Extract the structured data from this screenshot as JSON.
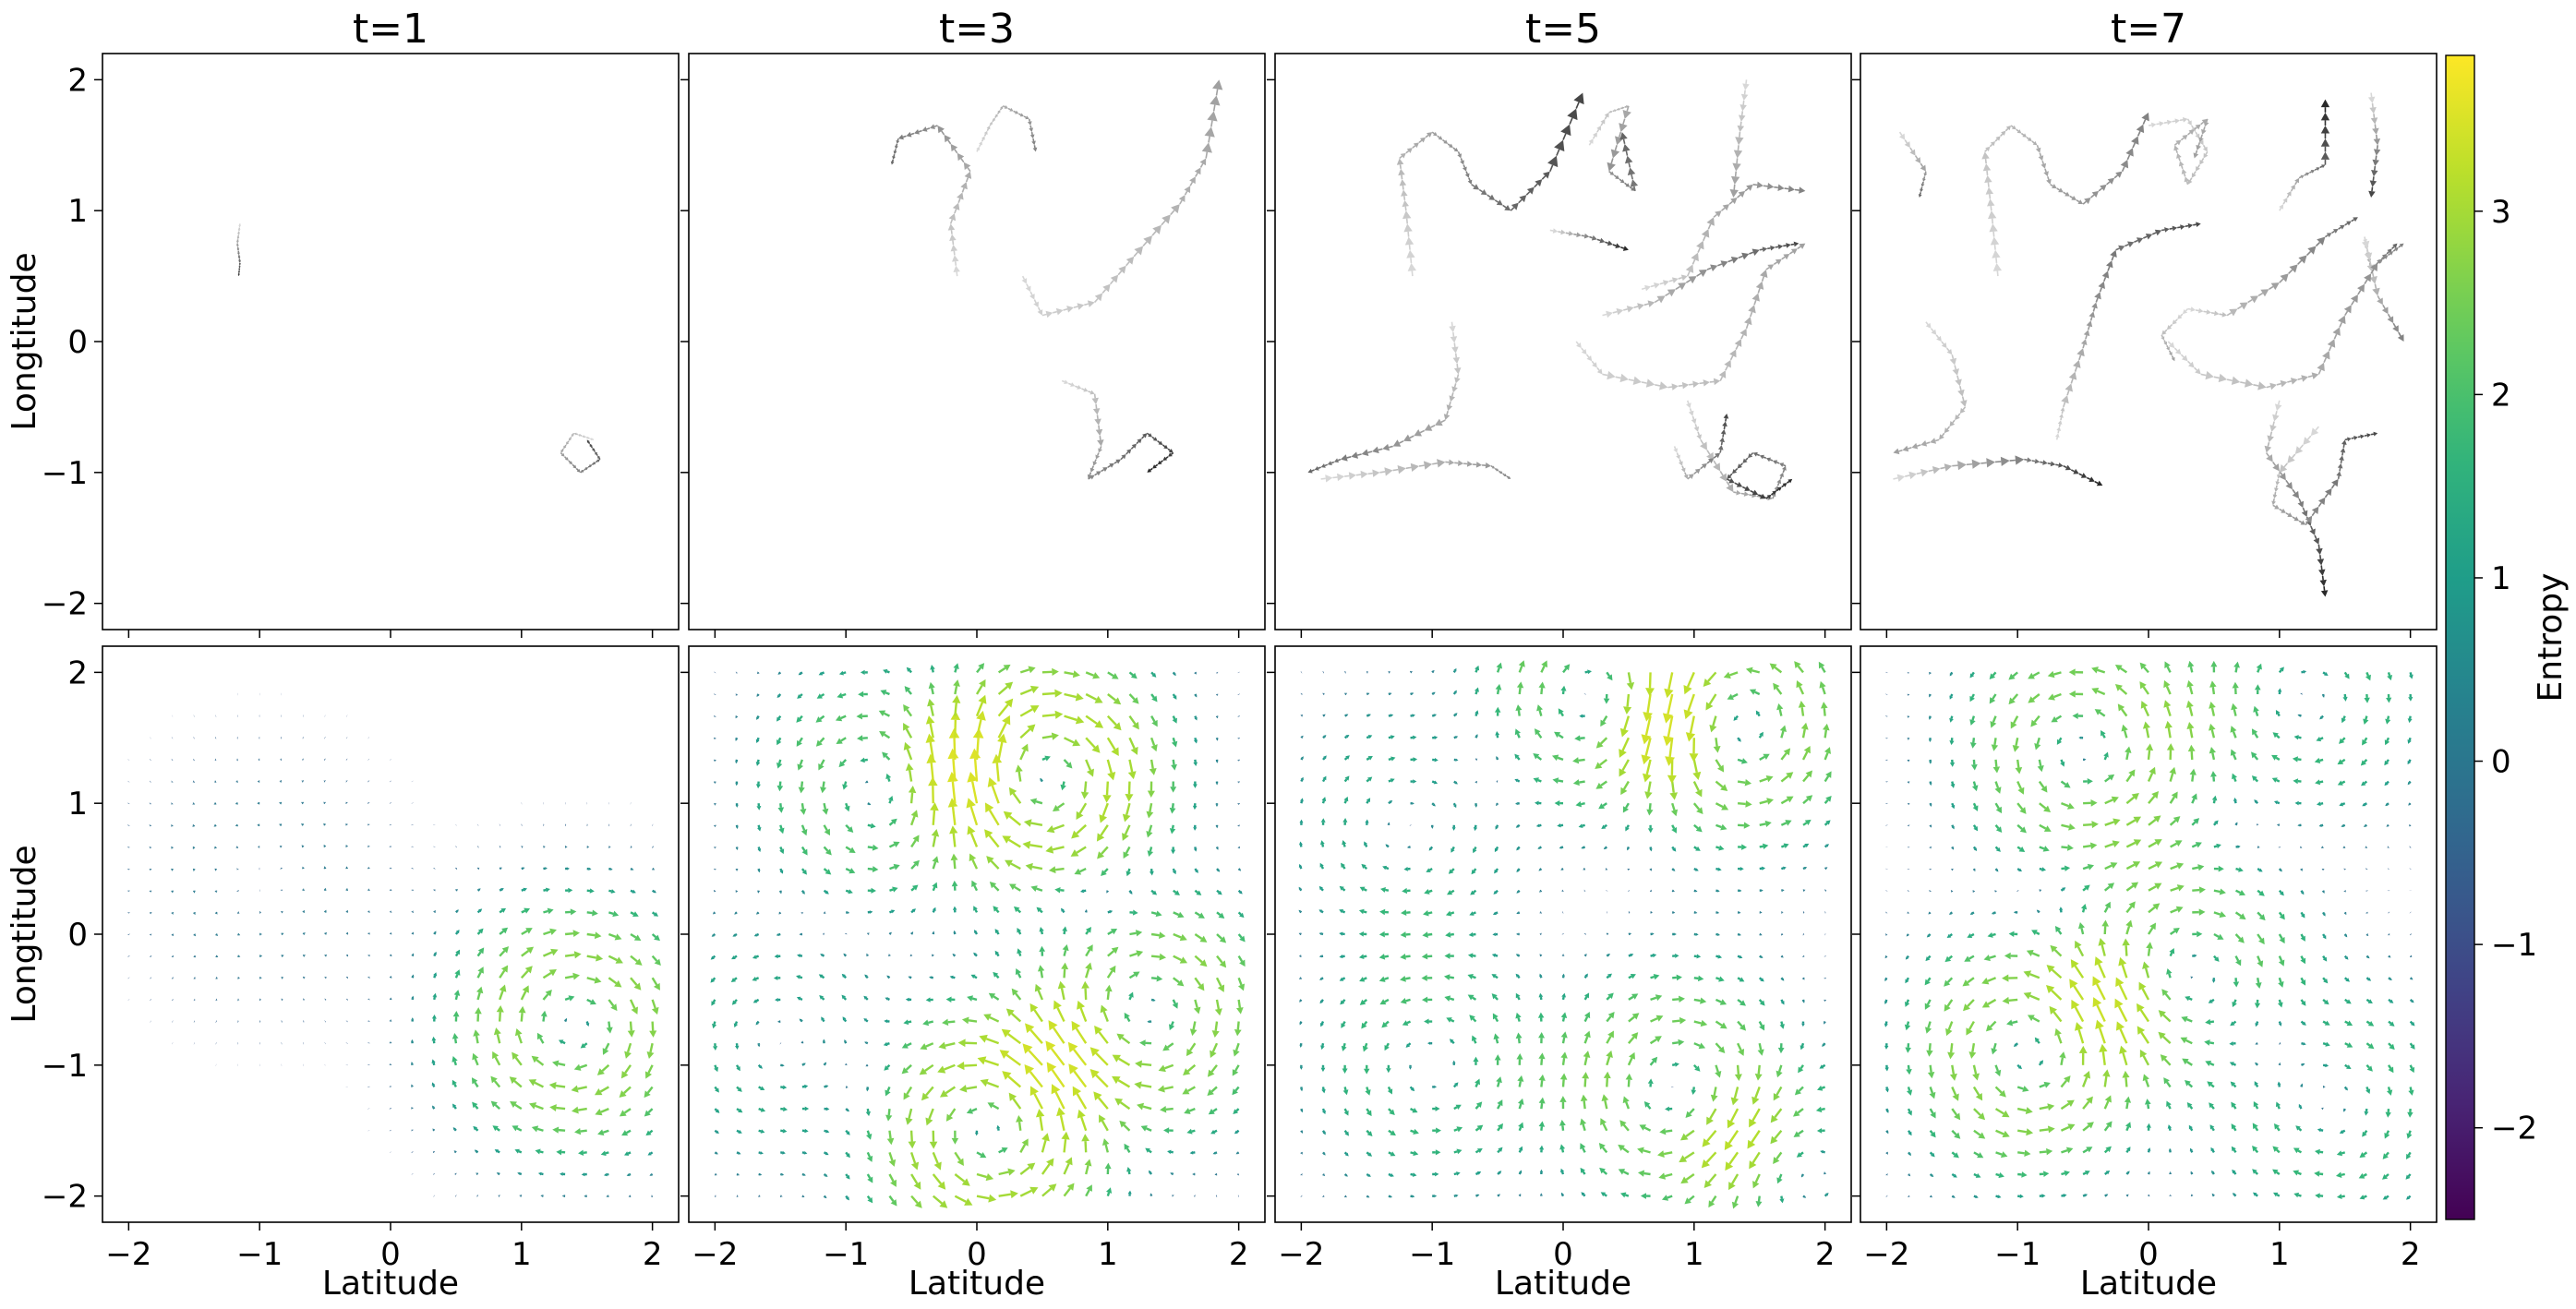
{
  "chart_data": {
    "type": "quiver-grid",
    "panel_titles": [
      "t=1",
      "t=3",
      "t=5",
      "t=7"
    ],
    "xlabel": "Latitude",
    "ylabel": "Longtitude",
    "xlim": [
      -2.2,
      2.2
    ],
    "ylim": [
      -2.2,
      2.2
    ],
    "xticks": [
      -2,
      -1,
      0,
      1,
      2
    ],
    "yticks": [
      -2,
      -1,
      0,
      1,
      2
    ],
    "xtick_labels": [
      "−2",
      "−1",
      "0",
      "1",
      "2"
    ],
    "ytick_labels": [
      "−2",
      "−1",
      "0",
      "1",
      "2"
    ],
    "top_row": {
      "description": "particle trajectories drawn as gray/black arrow trails",
      "trajectories": [
        {
          "t": "t=1",
          "points": [
            [
              -1.15,
              0.9
            ],
            [
              -1.17,
              0.75
            ],
            [
              -1.15,
              0.6
            ],
            [
              -1.16,
              0.5
            ]
          ]
        },
        {
          "t": "t=1",
          "points": [
            [
              1.55,
              -0.75
            ],
            [
              1.4,
              -0.7
            ],
            [
              1.3,
              -0.85
            ],
            [
              1.45,
              -1.0
            ],
            [
              1.6,
              -0.9
            ],
            [
              1.5,
              -0.75
            ]
          ]
        },
        {
          "t": "t=3",
          "points": [
            [
              -0.15,
              0.5
            ],
            [
              -0.2,
              0.9
            ],
            [
              -0.05,
              1.3
            ],
            [
              -0.3,
              1.65
            ],
            [
              -0.6,
              1.55
            ],
            [
              -0.65,
              1.35
            ]
          ]
        },
        {
          "t": "t=3",
          "points": [
            [
              0.0,
              1.45
            ],
            [
              0.1,
              1.65
            ],
            [
              0.2,
              1.8
            ],
            [
              0.4,
              1.7
            ],
            [
              0.45,
              1.45
            ]
          ]
        },
        {
          "t": "t=3",
          "points": [
            [
              0.35,
              0.5
            ],
            [
              0.5,
              0.2
            ],
            [
              0.9,
              0.3
            ],
            [
              1.2,
              0.65
            ],
            [
              1.55,
              1.05
            ],
            [
              1.75,
              1.4
            ],
            [
              1.85,
              2.0
            ]
          ]
        },
        {
          "t": "t=3",
          "points": [
            [
              0.65,
              -0.3
            ],
            [
              0.9,
              -0.4
            ],
            [
              0.95,
              -0.8
            ],
            [
              0.85,
              -1.05
            ],
            [
              1.1,
              -0.9
            ],
            [
              1.3,
              -0.7
            ],
            [
              1.5,
              -0.85
            ],
            [
              1.3,
              -1.0
            ]
          ]
        },
        {
          "t": "t=5",
          "points": [
            [
              -1.15,
              0.5
            ],
            [
              -1.2,
              1.0
            ],
            [
              -1.25,
              1.4
            ],
            [
              -1.0,
              1.6
            ],
            [
              -0.8,
              1.45
            ],
            [
              -0.7,
              1.2
            ],
            [
              -0.4,
              1.0
            ],
            [
              -0.1,
              1.3
            ],
            [
              0.15,
              1.9
            ]
          ]
        },
        {
          "t": "t=5",
          "points": [
            [
              0.2,
              1.5
            ],
            [
              0.35,
              1.75
            ],
            [
              0.5,
              1.8
            ],
            [
              0.35,
              1.3
            ],
            [
              0.55,
              1.15
            ],
            [
              0.45,
              1.6
            ]
          ]
        },
        {
          "t": "t=5",
          "points": [
            [
              0.6,
              0.4
            ],
            [
              0.95,
              0.5
            ],
            [
              1.15,
              0.95
            ],
            [
              1.45,
              1.2
            ],
            [
              1.85,
              1.15
            ]
          ]
        },
        {
          "t": "t=5",
          "points": [
            [
              1.4,
              2.0
            ],
            [
              1.35,
              1.6
            ],
            [
              1.3,
              1.1
            ]
          ]
        },
        {
          "t": "t=5",
          "points": [
            [
              -0.1,
              0.85
            ],
            [
              0.2,
              0.8
            ],
            [
              0.5,
              0.7
            ]
          ]
        },
        {
          "t": "t=5",
          "points": [
            [
              0.3,
              0.2
            ],
            [
              0.7,
              0.3
            ],
            [
              1.1,
              0.55
            ],
            [
              1.5,
              0.7
            ],
            [
              1.8,
              0.75
            ]
          ]
        },
        {
          "t": "t=5",
          "points": [
            [
              -0.85,
              0.15
            ],
            [
              -0.8,
              -0.25
            ],
            [
              -0.9,
              -0.6
            ],
            [
              -1.3,
              -0.8
            ],
            [
              -1.7,
              -0.9
            ],
            [
              -1.95,
              -1.0
            ]
          ]
        },
        {
          "t": "t=5",
          "points": [
            [
              -1.85,
              -1.05
            ],
            [
              -1.4,
              -1.0
            ],
            [
              -0.9,
              -0.92
            ],
            [
              -0.55,
              -0.95
            ],
            [
              -0.4,
              -1.05
            ]
          ]
        },
        {
          "t": "t=5",
          "points": [
            [
              0.1,
              0.0
            ],
            [
              0.3,
              -0.25
            ],
            [
              0.8,
              -0.35
            ],
            [
              1.2,
              -0.3
            ],
            [
              1.4,
              0.1
            ],
            [
              1.55,
              0.55
            ],
            [
              1.85,
              0.75
            ]
          ]
        },
        {
          "t": "t=5",
          "points": [
            [
              0.95,
              -0.45
            ],
            [
              1.05,
              -0.75
            ],
            [
              1.3,
              -1.15
            ],
            [
              1.6,
              -1.2
            ],
            [
              1.7,
              -0.95
            ],
            [
              1.45,
              -0.85
            ],
            [
              1.25,
              -1.05
            ],
            [
              1.55,
              -1.2
            ],
            [
              1.75,
              -1.05
            ]
          ]
        },
        {
          "t": "t=5",
          "points": [
            [
              0.85,
              -0.8
            ],
            [
              0.95,
              -1.05
            ],
            [
              1.2,
              -0.85
            ],
            [
              1.25,
              -0.55
            ]
          ]
        },
        {
          "t": "t=7",
          "points": [
            [
              -1.9,
              1.6
            ],
            [
              -1.7,
              1.3
            ],
            [
              -1.75,
              1.1
            ]
          ]
        },
        {
          "t": "t=7",
          "points": [
            [
              -1.15,
              0.5
            ],
            [
              -1.2,
              1.0
            ],
            [
              -1.25,
              1.45
            ],
            [
              -1.05,
              1.65
            ],
            [
              -0.85,
              1.5
            ],
            [
              -0.75,
              1.2
            ],
            [
              -0.5,
              1.05
            ],
            [
              -0.2,
              1.3
            ],
            [
              0.0,
              1.75
            ]
          ]
        },
        {
          "t": "t=7",
          "points": [
            [
              0.0,
              1.65
            ],
            [
              0.3,
              1.7
            ],
            [
              0.45,
              1.45
            ],
            [
              0.3,
              1.2
            ],
            [
              0.2,
              1.5
            ],
            [
              0.45,
              1.7
            ],
            [
              0.35,
              1.4
            ]
          ]
        },
        {
          "t": "t=7",
          "points": [
            [
              1.0,
              1.0
            ],
            [
              1.15,
              1.25
            ],
            [
              1.35,
              1.35
            ],
            [
              1.35,
              1.85
            ]
          ]
        },
        {
          "t": "t=7",
          "points": [
            [
              1.7,
              1.9
            ],
            [
              1.75,
              1.5
            ],
            [
              1.7,
              1.1
            ]
          ]
        },
        {
          "t": "t=7",
          "points": [
            [
              1.65,
              0.8
            ],
            [
              1.7,
              0.55
            ],
            [
              1.9,
              0.75
            ]
          ]
        },
        {
          "t": "t=7",
          "points": [
            [
              1.65,
              0.8
            ],
            [
              1.75,
              0.35
            ],
            [
              1.95,
              0.0
            ]
          ]
        },
        {
          "t": "t=7",
          "points": [
            [
              -1.7,
              0.15
            ],
            [
              -1.5,
              -0.1
            ],
            [
              -1.4,
              -0.5
            ],
            [
              -1.6,
              -0.75
            ],
            [
              -1.95,
              -0.85
            ]
          ]
        },
        {
          "t": "t=7",
          "points": [
            [
              -1.95,
              -1.05
            ],
            [
              -1.5,
              -0.95
            ],
            [
              -0.95,
              -0.9
            ],
            [
              -0.65,
              -0.95
            ],
            [
              -0.35,
              -1.1
            ]
          ]
        },
        {
          "t": "t=7",
          "points": [
            [
              -0.7,
              -0.75
            ],
            [
              -0.65,
              -0.5
            ],
            [
              -0.5,
              -0.05
            ],
            [
              -0.4,
              0.3
            ],
            [
              -0.25,
              0.7
            ],
            [
              0.1,
              0.85
            ],
            [
              0.4,
              0.9
            ]
          ]
        },
        {
          "t": "t=7",
          "points": [
            [
              0.3,
              0.25
            ],
            [
              0.6,
              0.2
            ],
            [
              1.0,
              0.45
            ],
            [
              1.35,
              0.8
            ],
            [
              1.6,
              0.95
            ]
          ]
        },
        {
          "t": "t=7",
          "points": [
            [
              0.15,
              0.0
            ],
            [
              0.4,
              -0.25
            ],
            [
              0.9,
              -0.35
            ],
            [
              1.3,
              -0.25
            ],
            [
              1.5,
              0.2
            ],
            [
              1.75,
              0.6
            ],
            [
              1.95,
              0.75
            ]
          ]
        },
        {
          "t": "t=7",
          "points": [
            [
              0.3,
              0.25
            ],
            [
              0.1,
              0.05
            ],
            [
              0.2,
              -0.15
            ]
          ]
        },
        {
          "t": "t=7",
          "points": [
            [
              1.0,
              -0.45
            ],
            [
              0.9,
              -0.85
            ],
            [
              1.15,
              -1.2
            ],
            [
              1.3,
              -1.55
            ],
            [
              1.35,
              -1.95
            ]
          ]
        },
        {
          "t": "t=7",
          "points": [
            [
              1.3,
              -0.65
            ],
            [
              1.0,
              -1.0
            ],
            [
              0.95,
              -1.25
            ],
            [
              1.2,
              -1.4
            ],
            [
              1.45,
              -1.05
            ],
            [
              1.5,
              -0.75
            ],
            [
              1.75,
              -0.7
            ]
          ]
        }
      ]
    },
    "bottom_row": {
      "description": "velocity quiver fields coloured by entropy",
      "color_variable": "Entropy",
      "fields": [
        {
          "t": "t=1",
          "vortices": [
            {
              "x": 1.4,
              "y": -0.7,
              "strength": -0.9
            },
            {
              "x": -1.0,
              "y": 0.4,
              "strength": 0.15
            }
          ]
        },
        {
          "t": "t=3",
          "vortices": [
            {
              "x": -0.7,
              "y": 1.1,
              "strength": 0.7
            },
            {
              "x": 0.5,
              "y": 1.2,
              "strength": -1.2
            },
            {
              "x": 1.3,
              "y": -0.6,
              "strength": -0.9
            },
            {
              "x": 0.1,
              "y": -1.5,
              "strength": 1.1
            },
            {
              "x": -1.5,
              "y": -0.8,
              "strength": 0.4
            }
          ]
        },
        {
          "t": "t=5",
          "vortices": [
            {
              "x": 0.3,
              "y": 1.8,
              "strength": -0.8
            },
            {
              "x": 1.3,
              "y": 1.6,
              "strength": 0.9
            },
            {
              "x": 0.9,
              "y": -1.2,
              "strength": -0.8
            },
            {
              "x": -1.2,
              "y": 0.8,
              "strength": -0.4
            },
            {
              "x": -1.0,
              "y": -1.0,
              "strength": 0.5
            },
            {
              "x": 1.8,
              "y": -1.8,
              "strength": 0.5
            }
          ]
        },
        {
          "t": "t=7",
          "vortices": [
            {
              "x": -0.5,
              "y": 1.4,
              "strength": 0.8
            },
            {
              "x": 0.3,
              "y": -0.3,
              "strength": -0.7
            },
            {
              "x": -0.9,
              "y": -0.9,
              "strength": 0.9
            },
            {
              "x": 1.2,
              "y": 1.8,
              "strength": -0.5
            },
            {
              "x": 1.4,
              "y": -1.3,
              "strength": -0.5
            }
          ]
        }
      ]
    },
    "colorbar": {
      "label": "Entropy",
      "colormap": "viridis",
      "range": [
        -2.5,
        3.85
      ],
      "ticks": [
        -2,
        -1,
        0,
        1,
        2,
        3
      ],
      "tick_labels": [
        "−2",
        "−1",
        "0",
        "1",
        "2",
        "3"
      ]
    }
  }
}
